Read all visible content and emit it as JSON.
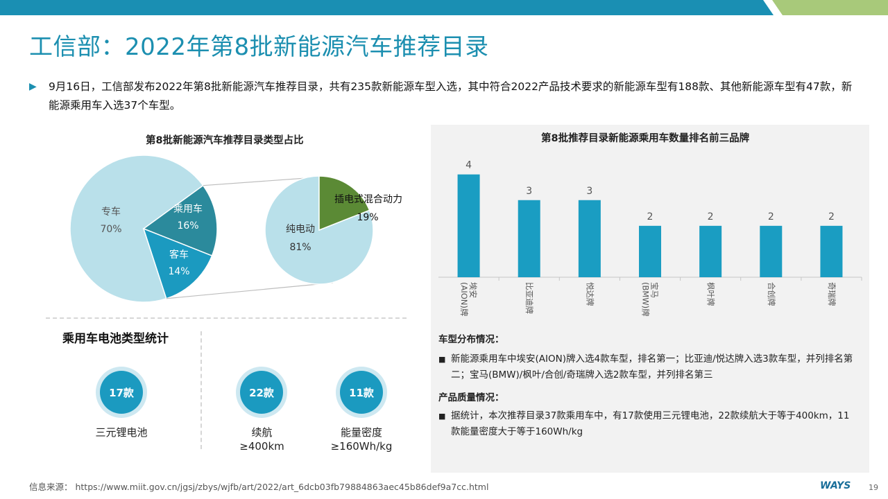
{
  "page": {
    "title": "工信部：2022年第8批新能源汽车推荐目录",
    "bullet": "9月16日，工信部发布2022年第8批新能源汽车推荐目录，共有235款新能源车型入选，其中符合2022产品技术要求的新能源车型有188款、其他新能源车型有47款，新能源乘用车入选37个车型。",
    "source": "信息来源：  https://www.miit.gov.cn/jgsj/zbys/wjfb/art/2022/art_6dcb03fb79884863aec45b86def9a7cc.html",
    "logo": "WAYS",
    "page_number": "19"
  },
  "colors": {
    "accent": "#1c8fb0",
    "light_blue": "#b9e0ea",
    "teal": "#2b8a9c",
    "mid_blue": "#1b9ac0",
    "green": "#5b8a35",
    "bar": "#1a9dc2",
    "topbar_blue": "#1a8fb3",
    "topbar_green": "#a8c97a"
  },
  "battery": {
    "title": "乘用车电池类型统计",
    "stats": [
      {
        "value": "17款",
        "label": "三元锂电池"
      },
      {
        "value": "22款",
        "label": "续航\n≥400km"
      },
      {
        "value": "11款",
        "label": "能量密度\n≥160Wh/kg"
      }
    ]
  },
  "details": {
    "dist_heading": "车型分布情况：",
    "dist_text": "新能源乘用车中埃安(AION)牌入选4款车型，排名第一；比亚迪/悦达牌入选3款车型，并列排名第二；宝马(BMW)/枫叶/合创/奇瑞牌入选2款车型，并列排名第三",
    "quality_heading": "产品质量情况：",
    "quality_text": "据统计，本次推荐目录37款乘用车中，有17款使用三元锂电池，22款续航大于等于400km，11款能量密度大于等于160Wh/kg"
  },
  "chart_data": [
    {
      "type": "pie",
      "title": "第8批新能源汽车推荐目录类型占比",
      "slices": [
        {
          "label": "专车",
          "value": 70,
          "display": "70%"
        },
        {
          "label": "乘用车",
          "value": 16,
          "display": "16%"
        },
        {
          "label": "客车",
          "value": 14,
          "display": "14%"
        }
      ]
    },
    {
      "type": "pie",
      "title": "",
      "slices": [
        {
          "label": "纯电动",
          "value": 81,
          "display": "81%"
        },
        {
          "label": "插电式混合动力",
          "value": 19,
          "display": "19%"
        }
      ]
    },
    {
      "type": "bar",
      "title": "第8批推荐目录新能源乘用车数量排名前三品牌",
      "categories": [
        "埃安\n(AION)牌",
        "比亚迪牌",
        "悦达牌",
        "宝马\n(BMW)牌",
        "枫叶牌",
        "合创牌",
        "奇瑞牌"
      ],
      "values": [
        4,
        3,
        3,
        2,
        2,
        2,
        2
      ],
      "ylim": [
        0,
        4.8
      ],
      "grid": false,
      "data_labels": true
    }
  ]
}
